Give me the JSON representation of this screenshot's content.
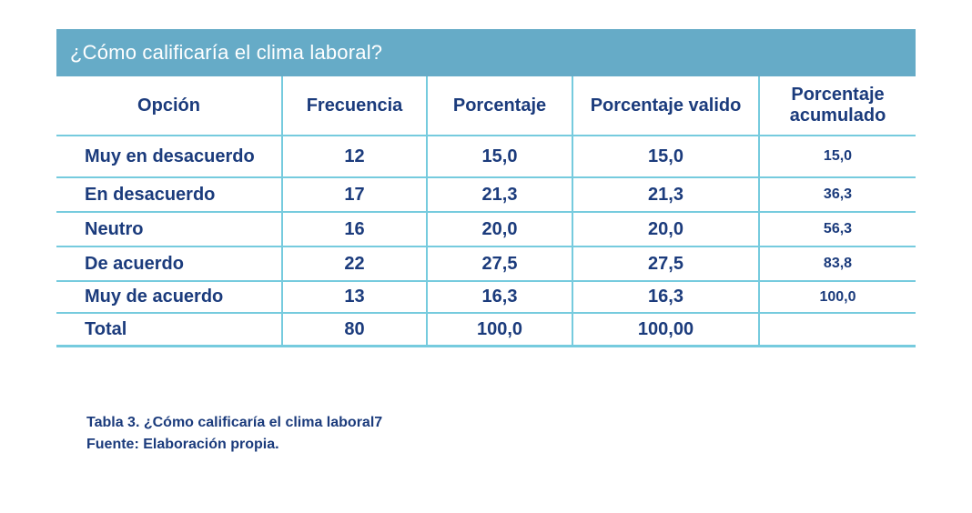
{
  "banner": {
    "title": "¿Cómo calificaría el clima laboral?"
  },
  "table": {
    "columns": [
      "Opción",
      "Frecuencia",
      "Porcentaje",
      "Porcentaje valido",
      "Porcentaje acumulado"
    ],
    "rows": [
      {
        "option": "Muy en desacuerdo",
        "frecuencia": "12",
        "porcentaje": "15,0",
        "valido": "15,0",
        "acumulado": "15,0"
      },
      {
        "option": "En desacuerdo",
        "frecuencia": "17",
        "porcentaje": "21,3",
        "valido": "21,3",
        "acumulado": "36,3"
      },
      {
        "option": "Neutro",
        "frecuencia": "16",
        "porcentaje": "20,0",
        "valido": "20,0",
        "acumulado": "56,3"
      },
      {
        "option": "De acuerdo",
        "frecuencia": "22",
        "porcentaje": "27,5",
        "valido": "27,5",
        "acumulado": "83,8"
      },
      {
        "option": "Muy de acuerdo",
        "frecuencia": "13",
        "porcentaje": "16,3",
        "valido": "16,3",
        "acumulado": "100,0"
      },
      {
        "option": "Total",
        "frecuencia": "80",
        "porcentaje": "100,0",
        "valido": "100,00",
        "acumulado": ""
      }
    ]
  },
  "caption": {
    "line1": "Tabla 3. ¿Cómo calificaría el clima laboral7",
    "line2": "Fuente: Elaboración propia."
  },
  "colors": {
    "banner_background": "#66abc7",
    "text_navy": "#1b3b7c",
    "grid_line": "#76cbde",
    "banner_title_text": "#ffffff"
  }
}
